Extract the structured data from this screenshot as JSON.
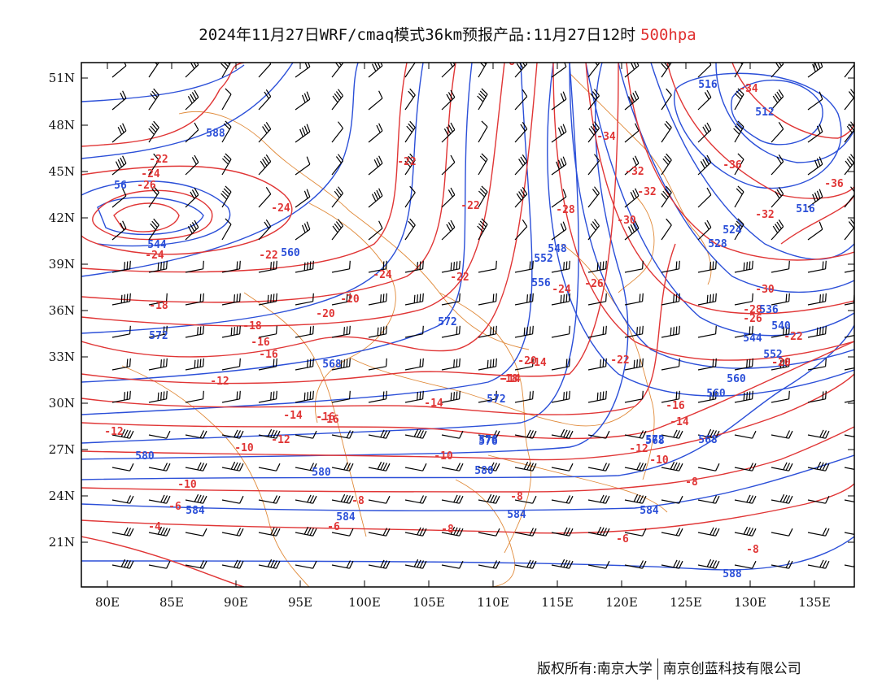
{
  "title": {
    "main": "2024年11月27日WRF/cmaq模式36km预报产品:11月27日12时",
    "level": "500hpa"
  },
  "colors": {
    "temperature": "#e03535",
    "height": "#2b4fd8",
    "border": "#e08a3a",
    "wind": "#000000",
    "level_text": "#e03030"
  },
  "lat_labels": [
    "51N",
    "48N",
    "45N",
    "42N",
    "39N",
    "36N",
    "33N",
    "30N",
    "27N",
    "24N",
    "21N"
  ],
  "lon_labels": [
    "80E",
    "85E",
    "90E",
    "95E",
    "100E",
    "105E",
    "110E",
    "115E",
    "120E",
    "125E",
    "130E",
    "135E"
  ],
  "temperature_labels": [
    "-22",
    "-24",
    "-26",
    "-24",
    "-24",
    "-22",
    "-24",
    "-22",
    "-22",
    "-22",
    "-20",
    "-18",
    "-20",
    "-18",
    "-16",
    "-16",
    "-14",
    "-12",
    "-14",
    "-16",
    "-14",
    "-10",
    "-10",
    "-12",
    "-12",
    "-10",
    "-14",
    "-16",
    "-18",
    "-20",
    "-22",
    "-20",
    "-16",
    "-14",
    "-12",
    "-10",
    "-8",
    "-8",
    "-8",
    "-6",
    "-4",
    "-6",
    "-8",
    "-6",
    "-8",
    "-6",
    "-34",
    "-34",
    "-36",
    "-32",
    "-30",
    "-28",
    "-26",
    "-24",
    "-22",
    "-20",
    "-28",
    "-26",
    "-32",
    "-36",
    "-30",
    "-32"
  ],
  "height_labels": [
    "588",
    "56",
    "544",
    "560",
    "572",
    "568",
    "572",
    "576",
    "580",
    "580",
    "584",
    "584",
    "584",
    "576",
    "572",
    "568",
    "560",
    "552",
    "548",
    "556",
    "536",
    "540",
    "544",
    "552",
    "560",
    "568",
    "572",
    "580",
    "584",
    "588",
    "512",
    "516",
    "516",
    "528",
    "524"
  ],
  "footer": {
    "left": "版权所有:南京大学",
    "right": "南京创蓝科技有限公司"
  }
}
